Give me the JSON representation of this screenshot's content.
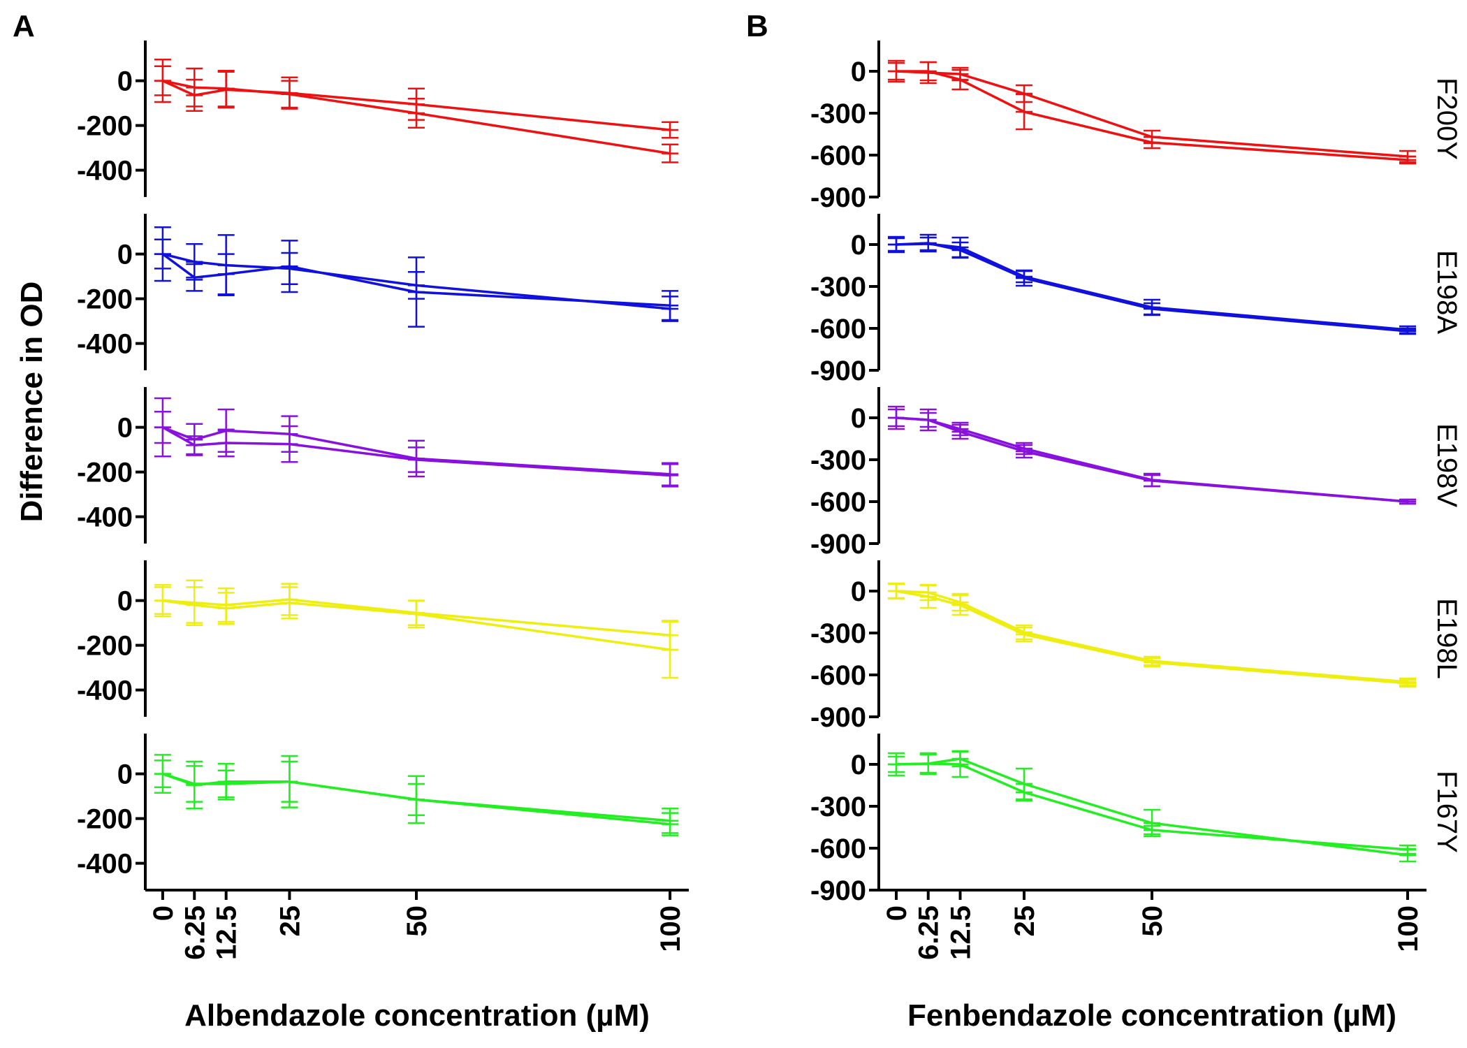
{
  "figure": {
    "panel_labels": [
      "A",
      "B"
    ],
    "ylabel": "Difference in OD"
  },
  "colors": {
    "F200Y": "#ee1111",
    "E198A": "#1111dd",
    "E198V": "#8811dd",
    "E198L": "#eeee11",
    "F167Y": "#22ee22"
  },
  "chart_data": [
    {
      "type": "line",
      "panel": "A",
      "xlabel": "Albendazole concentration (µM)",
      "x": [
        0,
        6.25,
        12.5,
        25,
        50,
        100
      ],
      "x_tick_labels": [
        "0",
        "6.25",
        "12.5",
        "25",
        "50",
        "100"
      ],
      "xlim": [
        -1.5,
        101.5
      ],
      "ylim": [
        -520,
        180
      ],
      "y_ticks": [
        0,
        -200,
        -400
      ],
      "y_tick_labels": [
        "0",
        "-200",
        "-400"
      ],
      "rows": [
        {
          "mutant": "F200Y",
          "series": [
            {
              "values": [
                0,
                -65,
                -40,
                -55,
                -105,
                -220
              ],
              "err": [
                95,
                70,
                80,
                70,
                70,
                35
              ]
            },
            {
              "values": [
                0,
                -30,
                -35,
                -60,
                -145,
                -325
              ],
              "err": [
                65,
                85,
                80,
                60,
                65,
                40
              ]
            }
          ]
        },
        {
          "mutant": "E198A",
          "series": [
            {
              "values": [
                0,
                -105,
                -90,
                -55,
                -170,
                -230
              ],
              "err": [
                120,
                60,
                90,
                115,
                155,
                65
              ]
            },
            {
              "values": [
                0,
                -35,
                -50,
                -65,
                -140,
                -245
              ],
              "err": [
                65,
                80,
                135,
                70,
                60,
                55
              ]
            }
          ]
        },
        {
          "mutant": "E198V",
          "series": [
            {
              "values": [
                0,
                -55,
                -15,
                -30,
                -140,
                -210
              ],
              "err": [
                130,
                70,
                95,
                80,
                80,
                50
              ]
            },
            {
              "values": [
                0,
                -80,
                -70,
                -75,
                -145,
                -215
              ],
              "err": [
                70,
                40,
                60,
                80,
                55,
                50
              ]
            }
          ]
        },
        {
          "mutant": "E198L",
          "series": [
            {
              "values": [
                0,
                -10,
                -20,
                5,
                -55,
                -155
              ],
              "err": [
                70,
                100,
                75,
                70,
                55,
                65
              ]
            },
            {
              "values": [
                0,
                -20,
                -35,
                -10,
                -60,
                -220
              ],
              "err": [
                60,
                80,
                70,
                70,
                60,
                125
              ]
            }
          ]
        },
        {
          "mutant": "F167Y",
          "series": [
            {
              "values": [
                0,
                -50,
                -35,
                -35,
                -115,
                -210
              ],
              "err": [
                85,
                105,
                80,
                115,
                105,
                55
              ]
            },
            {
              "values": [
                0,
                -45,
                -45,
                -35,
                -115,
                -225
              ],
              "err": [
                60,
                80,
                60,
                90,
                70,
                50
              ]
            }
          ]
        }
      ]
    },
    {
      "type": "line",
      "panel": "B",
      "xlabel": "Fenbendazole concentration (µM)",
      "x": [
        0,
        6.25,
        12.5,
        25,
        50,
        100
      ],
      "x_tick_labels": [
        "0",
        "6.25",
        "12.5",
        "25",
        "50",
        "100"
      ],
      "xlim": [
        -1.5,
        101.5
      ],
      "ylim": [
        -900,
        220
      ],
      "y_ticks": [
        0,
        -300,
        -600,
        -900
      ],
      "y_tick_labels": [
        "0",
        "-300",
        "-600",
        "-900"
      ],
      "rows": [
        {
          "mutant": "F200Y",
          "series": [
            {
              "values": [
                0,
                0,
                -60,
                -290,
                -510,
                -635
              ],
              "err": [
                75,
                65,
                70,
                125,
                40,
                25
              ]
            },
            {
              "values": [
                0,
                -10,
                -20,
                -160,
                -470,
                -610
              ],
              "err": [
                60,
                75,
                45,
                60,
                45,
                40
              ]
            }
          ]
        },
        {
          "mutant": "E198A",
          "series": [
            {
              "values": [
                0,
                10,
                -40,
                -240,
                -460,
                -620
              ],
              "err": [
                55,
                60,
                55,
                55,
                40,
                20
              ]
            },
            {
              "values": [
                0,
                5,
                -20,
                -230,
                -450,
                -610
              ],
              "err": [
                45,
                45,
                70,
                40,
                55,
                25
              ]
            }
          ]
        },
        {
          "mutant": "E198V",
          "series": [
            {
              "values": [
                0,
                -15,
                -100,
                -240,
                -450,
                -600
              ],
              "err": [
                80,
                75,
                50,
                45,
                40,
                15
              ]
            },
            {
              "values": [
                0,
                -15,
                -80,
                -220,
                -445,
                -600
              ],
              "err": [
                60,
                50,
                45,
                40,
                45,
                15
              ]
            }
          ]
        },
        {
          "mutant": "E198L",
          "series": [
            {
              "values": [
                0,
                -40,
                -100,
                -310,
                -510,
                -660
              ],
              "err": [
                55,
                80,
                70,
                50,
                30,
                25
              ]
            },
            {
              "values": [
                0,
                -10,
                -80,
                -295,
                -500,
                -650
              ],
              "err": [
                50,
                55,
                60,
                50,
                30,
                25
              ]
            }
          ]
        },
        {
          "mutant": "F167Y",
          "series": [
            {
              "values": [
                0,
                5,
                0,
                -200,
                -470,
                -610
              ],
              "err": [
                80,
                75,
                90,
                60,
                30,
                30
              ]
            },
            {
              "values": [
                0,
                5,
                40,
                -140,
                -420,
                -650
              ],
              "err": [
                55,
                65,
                55,
                110,
                95,
                45
              ]
            }
          ]
        }
      ]
    }
  ]
}
